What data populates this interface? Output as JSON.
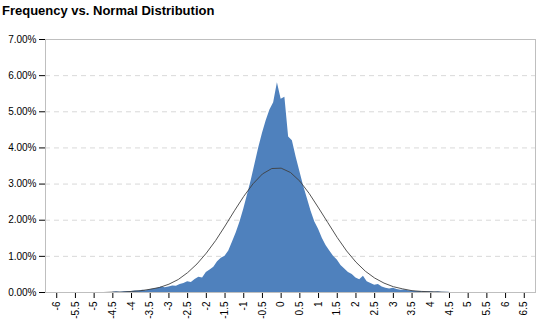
{
  "chart_data": {
    "type": "area",
    "title": "Frequency vs. Normal Distribution",
    "xlim": [
      -6.3,
      6.8
    ],
    "xticks": [
      -6,
      -5.5,
      -5,
      -4.5,
      -4,
      -3.5,
      -3,
      -2.5,
      -2,
      -1.5,
      -1,
      -0.5,
      0,
      0.5,
      1,
      1.5,
      2,
      2.5,
      3,
      3.5,
      4,
      4.5,
      5,
      5.5,
      6,
      6.5
    ],
    "ylim": [
      0,
      7
    ],
    "yticks": [
      {
        "value": 0,
        "label": "0.00%"
      },
      {
        "value": 1,
        "label": "1.00%"
      },
      {
        "value": 2,
        "label": "2.00%"
      },
      {
        "value": 3,
        "label": "3.00%"
      },
      {
        "value": 4,
        "label": "4.00%"
      },
      {
        "value": 5,
        "label": "5.00%"
      },
      {
        "value": 6,
        "label": "6.00%"
      },
      {
        "value": 7,
        "label": "7.00%"
      }
    ],
    "grid": true,
    "series": [
      {
        "type": "area",
        "color": "#4f81bd",
        "x": [
          -4.5,
          -4.4,
          -4.3,
          -4.2,
          -4.1,
          -4,
          -3.9,
          -3.8,
          -3.7,
          -3.6,
          -3.5,
          -3.4,
          -3.3,
          -3.2,
          -3.1,
          -3,
          -2.9,
          -2.8,
          -2.7,
          -2.6,
          -2.5,
          -2.4,
          -2.3,
          -2.2,
          -2.1,
          -2,
          -1.9,
          -1.8,
          -1.7,
          -1.6,
          -1.5,
          -1.4,
          -1.3,
          -1.2,
          -1.1,
          -1,
          -0.9,
          -0.8,
          -0.7,
          -0.6,
          -0.5,
          -0.4,
          -0.3,
          -0.2,
          -0.1,
          0,
          0.1,
          0.2,
          0.3,
          0.4,
          0.5,
          0.6,
          0.7,
          0.8,
          0.9,
          1,
          1.1,
          1.2,
          1.3,
          1.4,
          1.5,
          1.6,
          1.7,
          1.8,
          1.9,
          2,
          2.1,
          2.2,
          2.3,
          2.4,
          2.5,
          2.6,
          2.7,
          2.8,
          2.9,
          3,
          3.1,
          3.2,
          3.3,
          3.4,
          3.5,
          3.6,
          3.7,
          3.8,
          3.9,
          4,
          4.1,
          4.2,
          4.3,
          4.4,
          4.5
        ],
        "values": [
          0.01,
          0.02,
          0.01,
          0.02,
          0.03,
          0.03,
          0.04,
          0.04,
          0.06,
          0.05,
          0.08,
          0.1,
          0.12,
          0.15,
          0.13,
          0.15,
          0.18,
          0.17,
          0.22,
          0.25,
          0.3,
          0.28,
          0.36,
          0.42,
          0.4,
          0.55,
          0.62,
          0.7,
          0.85,
          0.95,
          1.0,
          1.15,
          1.4,
          1.65,
          1.95,
          2.3,
          2.7,
          3.1,
          3.55,
          4.0,
          4.4,
          4.75,
          5.05,
          5.25,
          5.8,
          5.35,
          5.4,
          4.3,
          4.2,
          3.75,
          3.35,
          2.95,
          2.6,
          2.25,
          1.95,
          1.75,
          1.5,
          1.3,
          1.15,
          1.0,
          0.9,
          0.75,
          0.65,
          0.55,
          0.5,
          0.4,
          0.35,
          0.45,
          0.3,
          0.25,
          0.2,
          0.22,
          0.15,
          0.12,
          0.1,
          0.12,
          0.08,
          0.06,
          0.07,
          0.05,
          0.04,
          0.03,
          0.03,
          0.02,
          0.02,
          0.02,
          0.01,
          0.02,
          0.01,
          0.01,
          0.01
        ]
      },
      {
        "type": "line",
        "color": "#404040",
        "x": [
          -5,
          -4.75,
          -4.5,
          -4.25,
          -4,
          -3.75,
          -3.5,
          -3.25,
          -3,
          -2.75,
          -2.5,
          -2.25,
          -2,
          -1.75,
          -1.5,
          -1.25,
          -1,
          -0.75,
          -0.5,
          -0.25,
          0,
          0.25,
          0.5,
          0.75,
          1,
          1.25,
          1.5,
          1.75,
          2,
          2.25,
          2.5,
          2.75,
          3,
          3.25,
          3.5,
          3.75,
          4,
          4.25,
          4.5,
          4.75,
          5
        ],
        "values": [
          0.0,
          0.0,
          0.01,
          0.01,
          0.03,
          0.05,
          0.09,
          0.14,
          0.23,
          0.36,
          0.55,
          0.79,
          1.09,
          1.44,
          1.84,
          2.26,
          2.66,
          3.01,
          3.28,
          3.43,
          3.44,
          3.32,
          3.08,
          2.74,
          2.34,
          1.93,
          1.52,
          1.15,
          0.84,
          0.59,
          0.4,
          0.26,
          0.16,
          0.1,
          0.05,
          0.03,
          0.02,
          0.01,
          0.0,
          0.0,
          0.0
        ]
      }
    ]
  }
}
